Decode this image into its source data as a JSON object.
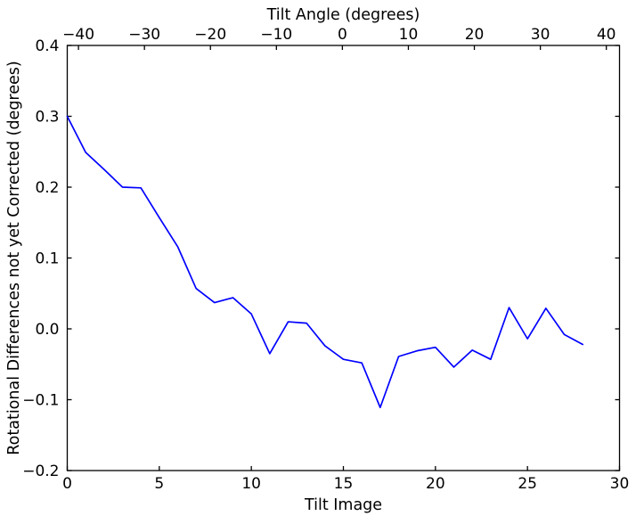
{
  "chart_data": {
    "type": "line",
    "title": "",
    "xlabel": "Tilt Image",
    "x2label": "Tilt Angle (degrees)",
    "ylabel": "Rotational Differences not yet Corrected (degrees)",
    "xlim": [
      0,
      30
    ],
    "ylim": [
      -0.2,
      0.4
    ],
    "x2lim": [
      -41.7,
      42.0
    ],
    "xticks": [
      0,
      5,
      10,
      15,
      20,
      25,
      30
    ],
    "x2ticks": [
      -40,
      -30,
      -20,
      -10,
      0,
      10,
      20,
      30,
      40
    ],
    "yticks": [
      0.4,
      0.3,
      0.2,
      0.1,
      0.0,
      -0.1,
      -0.2
    ],
    "grid": false,
    "legend": null,
    "line_color": "#0000ff",
    "series": [
      {
        "name": "rotational-differences",
        "x": [
          0,
          1,
          2,
          3,
          4,
          5,
          6,
          7,
          8,
          9,
          10,
          11,
          12,
          13,
          14,
          15,
          16,
          17,
          18,
          19,
          20,
          21,
          22,
          23,
          24,
          25,
          26,
          27,
          28
        ],
        "y": [
          0.3,
          0.249,
          0.225,
          0.2,
          0.199,
          0.157,
          0.116,
          0.057,
          0.037,
          0.044,
          0.021,
          -0.035,
          0.01,
          0.008,
          -0.024,
          -0.043,
          -0.048,
          -0.111,
          -0.039,
          -0.031,
          -0.026,
          -0.054,
          -0.03,
          -0.043,
          0.03,
          -0.014,
          0.029,
          -0.008,
          -0.022
        ]
      }
    ]
  },
  "colors": {
    "line": "#0000ff",
    "frame": "#000000",
    "background": "#ffffff"
  }
}
